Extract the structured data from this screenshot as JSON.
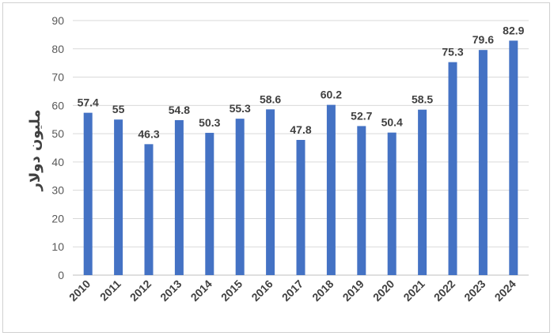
{
  "chart_data": {
    "type": "bar",
    "title": "",
    "xlabel": "",
    "ylabel": "ملیون دولار",
    "ylim": [
      0,
      90
    ],
    "yticks": [
      0,
      10,
      20,
      30,
      40,
      50,
      60,
      70,
      80,
      90
    ],
    "grid": true,
    "bar_color": "#4472C4",
    "categories": [
      "2010",
      "2011",
      "2012",
      "2013",
      "2014",
      "2015",
      "2016",
      "2017",
      "2018",
      "2019",
      "2020",
      "2021",
      "2022",
      "2023",
      "2024"
    ],
    "values": [
      57.4,
      55,
      46.3,
      54.8,
      50.3,
      55.3,
      58.6,
      47.8,
      60.2,
      52.7,
      50.4,
      58.5,
      75.3,
      79.6,
      82.9
    ]
  }
}
